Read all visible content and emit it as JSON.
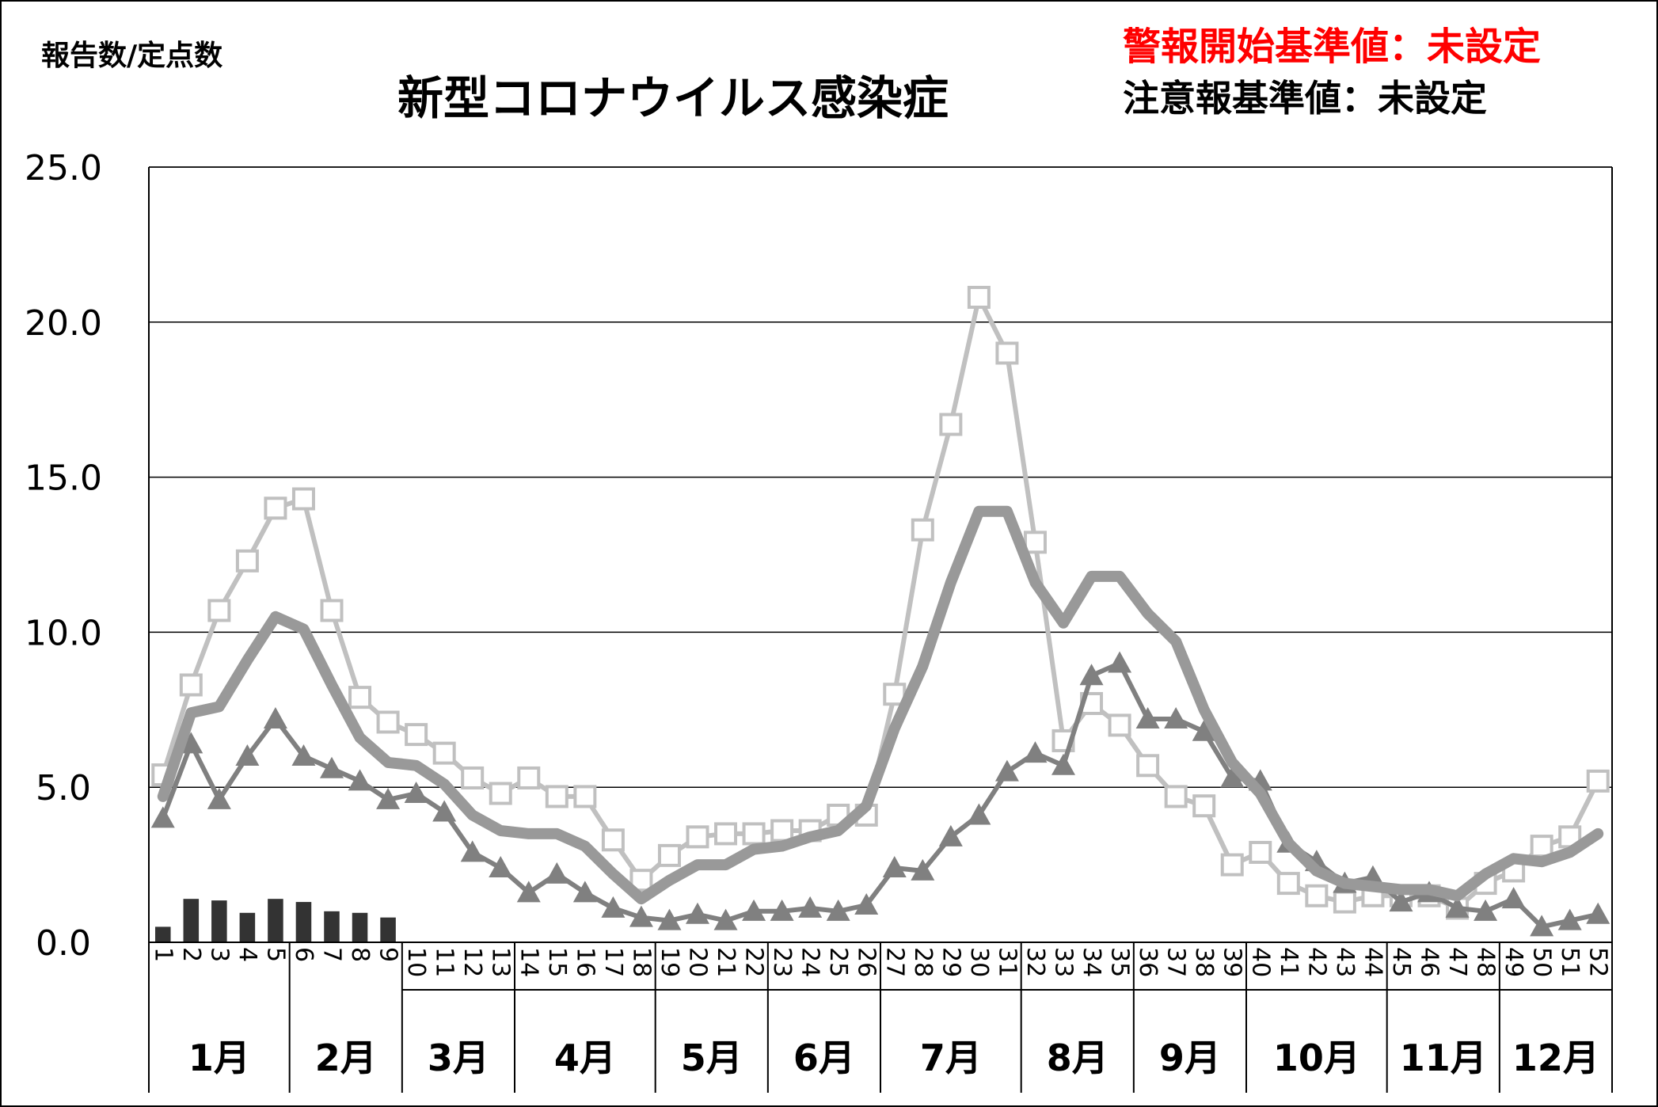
{
  "header": {
    "ylabel": "報告数/定点数",
    "title": "新型コロナウイルス感染症",
    "alert_threshold": "警報開始基準値：未設定",
    "warning_threshold": "注意報基準値：未設定"
  },
  "colors": {
    "current_year_bars": "#333333",
    "series_light": "#c0c0c0",
    "series_thick": "#999999",
    "series_triangle": "#808080",
    "alert_text": "#ff0000"
  },
  "chart_data": {
    "type": "line",
    "ylim": [
      0,
      25
    ],
    "yticks": [
      "0.0",
      "5.0",
      "10.0",
      "15.0",
      "20.0",
      "25.0"
    ],
    "grid": true,
    "x_weeks": [
      "1",
      "2",
      "3",
      "4",
      "5",
      "6",
      "7",
      "8",
      "9",
      "10",
      "11",
      "12",
      "13",
      "14",
      "15",
      "16",
      "17",
      "18",
      "19",
      "20",
      "21",
      "22",
      "23",
      "24",
      "25",
      "26",
      "27",
      "28",
      "29",
      "30",
      "31",
      "32",
      "33",
      "34",
      "35",
      "36",
      "37",
      "38",
      "39",
      "40",
      "41",
      "42",
      "43",
      "44",
      "45",
      "46",
      "47",
      "48",
      "49",
      "50",
      "51",
      "52"
    ],
    "months": [
      {
        "label": "1月",
        "start_week": 1,
        "end_week": 5
      },
      {
        "label": "2月",
        "start_week": 6,
        "end_week": 9
      },
      {
        "label": "3月",
        "start_week": 10,
        "end_week": 13
      },
      {
        "label": "4月",
        "start_week": 14,
        "end_week": 18
      },
      {
        "label": "5月",
        "start_week": 19,
        "end_week": 22
      },
      {
        "label": "6月",
        "start_week": 23,
        "end_week": 26
      },
      {
        "label": "7月",
        "start_week": 27,
        "end_week": 31
      },
      {
        "label": "8月",
        "start_week": 32,
        "end_week": 35
      },
      {
        "label": "9月",
        "start_week": 36,
        "end_week": 39
      },
      {
        "label": "10月",
        "start_week": 40,
        "end_week": 44
      },
      {
        "label": "11月",
        "start_week": 45,
        "end_week": 48
      },
      {
        "label": "12月",
        "start_week": 49,
        "end_week": 52
      }
    ],
    "bars": [
      0.5,
      1.4,
      1.35,
      0.95,
      1.4,
      1.3,
      1.0,
      0.95,
      0.8
    ],
    "series": [
      {
        "marker": "square",
        "values": [
          5.4,
          8.3,
          10.7,
          12.3,
          14.0,
          14.3,
          10.7,
          7.9,
          7.1,
          6.7,
          6.1,
          5.3,
          4.8,
          5.3,
          4.7,
          4.7,
          3.3,
          2.0,
          2.8,
          3.4,
          3.5,
          3.5,
          3.6,
          3.6,
          4.1,
          4.1,
          8.0,
          13.3,
          16.7,
          20.8,
          19.0,
          12.9,
          6.5,
          7.7,
          7.0,
          5.7,
          4.7,
          4.4,
          2.5,
          2.9,
          1.9,
          1.5,
          1.3,
          1.5,
          1.5,
          1.5,
          1.1,
          1.9,
          2.3,
          3.1,
          3.4,
          5.2
        ]
      },
      {
        "marker": "none",
        "values": [
          4.7,
          7.4,
          7.6,
          9.1,
          10.5,
          10.1,
          8.3,
          6.6,
          5.8,
          5.7,
          5.1,
          4.1,
          3.6,
          3.5,
          3.5,
          3.1,
          2.2,
          1.4,
          2.0,
          2.5,
          2.5,
          3.0,
          3.1,
          3.4,
          3.6,
          4.4,
          6.9,
          8.9,
          11.6,
          13.9,
          13.9,
          11.6,
          10.3,
          11.8,
          11.8,
          10.6,
          9.7,
          7.5,
          5.8,
          4.8,
          3.2,
          2.3,
          1.9,
          1.8,
          1.7,
          1.7,
          1.5,
          2.2,
          2.7,
          2.6,
          2.9,
          3.5
        ]
      },
      {
        "marker": "triangle",
        "values": [
          4.0,
          6.4,
          4.6,
          6.0,
          7.2,
          6.0,
          5.6,
          5.2,
          4.6,
          4.8,
          4.2,
          2.9,
          2.4,
          1.6,
          2.2,
          1.6,
          1.1,
          0.8,
          0.7,
          0.9,
          0.7,
          1.0,
          1.0,
          1.1,
          1.0,
          1.2,
          2.4,
          2.3,
          3.4,
          4.1,
          5.5,
          6.1,
          5.7,
          8.6,
          9.0,
          7.2,
          7.2,
          6.8,
          5.3,
          5.2,
          3.2,
          2.6,
          1.9,
          2.1,
          1.3,
          1.6,
          1.1,
          1.0,
          1.4,
          0.5,
          0.7,
          0.9
        ]
      }
    ]
  }
}
